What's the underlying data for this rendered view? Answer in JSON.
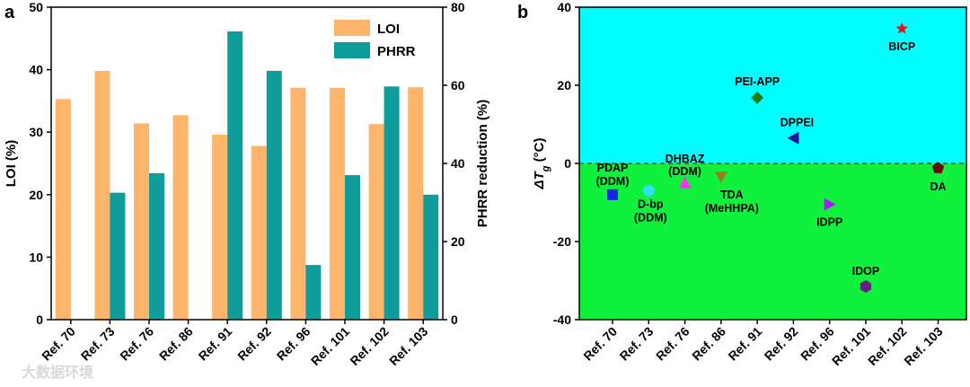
{
  "watermark": "大数据环境",
  "chart_data": [
    {
      "panel": "a",
      "type": "bar",
      "categories": [
        "Ref. 70",
        "Ref. 73",
        "Ref. 76",
        "Ref. 86",
        "Ref. 91",
        "Ref. 92",
        "Ref. 96",
        "Ref. 101",
        "Ref. 102",
        "Ref. 103"
      ],
      "ylabel": "LOI (%)",
      "y2label": "PHRR reduction (%)",
      "ylim": [
        0,
        50
      ],
      "y2lim": [
        0,
        80
      ],
      "yticks": [
        0,
        10,
        20,
        30,
        40,
        50
      ],
      "y2ticks": [
        0,
        20,
        40,
        60,
        80
      ],
      "legend_position": "top-right",
      "series": [
        {
          "name": "LOI",
          "axis": "left",
          "color": "#FDB46B",
          "values": [
            35.3,
            39.8,
            31.4,
            32.7,
            29.6,
            27.8,
            37.1,
            37.1,
            31.3,
            37.2
          ]
        },
        {
          "name": "PHRR",
          "axis": "right",
          "color": "#0E9D9A",
          "values": [
            null,
            32.5,
            37.5,
            null,
            73.8,
            63.7,
            14.0,
            37.0,
            59.7,
            32.0
          ]
        }
      ]
    },
    {
      "panel": "b",
      "type": "scatter",
      "categories": [
        "Ref. 70",
        "Ref. 73",
        "Ref. 76",
        "Ref. 86",
        "Ref. 91",
        "Ref. 92",
        "Ref. 96",
        "Ref. 101",
        "Ref. 102",
        "Ref. 103"
      ],
      "ylabel_main": "ΔT",
      "ylabel_sub": "g",
      "ylabel_unit": " (°C)",
      "ylim": [
        -40,
        40
      ],
      "yticks": [
        -40,
        -20,
        0,
        20,
        40
      ],
      "background_above_zero": "#00FFFF",
      "background_below_zero": "#0FF13C",
      "zero_line": "dashed",
      "points": [
        {
          "category": "Ref. 70",
          "y": -8,
          "marker": "square",
          "color": "#1024E8",
          "labels": [
            "PDAP",
            "(DDM)"
          ]
        },
        {
          "category": "Ref. 73",
          "y": -7,
          "marker": "circle",
          "color": "#2FE0F0",
          "labels": [
            "D-bp",
            "(DDM)"
          ]
        },
        {
          "category": "Ref. 76",
          "y": -5,
          "marker": "triangle-up",
          "color": "#FF30F0",
          "labels": [
            "DHBAZ",
            "(DDM)"
          ]
        },
        {
          "category": "Ref. 86",
          "y": -3.5,
          "marker": "triangle-down",
          "color": "#9B7E1C",
          "labels": [
            "TDA",
            "(MeHHPA)"
          ]
        },
        {
          "category": "Ref. 91",
          "y": 16.8,
          "marker": "diamond",
          "color": "#1E7A14",
          "labels": [
            "PEI-APP"
          ]
        },
        {
          "category": "Ref. 92",
          "y": 6.5,
          "marker": "triangle-left",
          "color": "#1A1A9A",
          "labels": [
            "DPPEI"
          ]
        },
        {
          "category": "Ref. 96",
          "y": -10.5,
          "marker": "triangle-right",
          "color": "#A020F0",
          "labels": [
            "IDPP"
          ]
        },
        {
          "category": "Ref. 101",
          "y": -31.5,
          "marker": "hexagon",
          "color": "#6A1E80",
          "labels": [
            "IDOP"
          ]
        },
        {
          "category": "Ref. 102",
          "y": 34.5,
          "marker": "star",
          "color": "#EE1111",
          "labels": [
            "BICP"
          ]
        },
        {
          "category": "Ref. 103",
          "y": -1.2,
          "marker": "pentagon",
          "color": "#6A0A0A",
          "labels": [
            "DA"
          ]
        }
      ]
    }
  ]
}
